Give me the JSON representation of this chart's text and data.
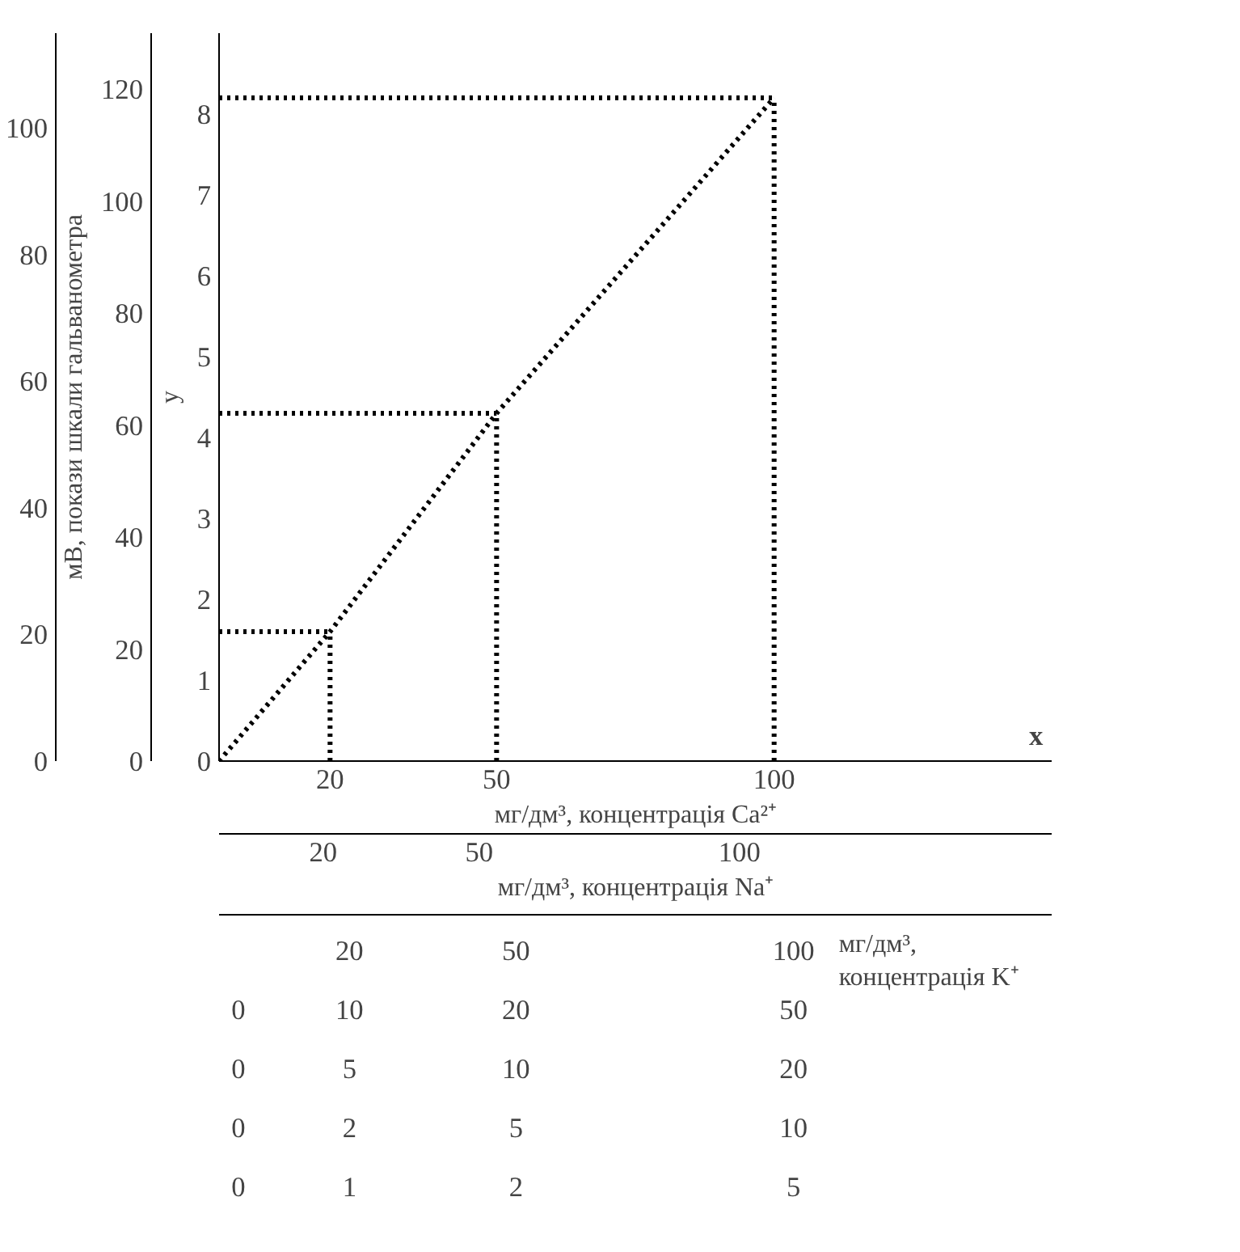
{
  "chart_data": {
    "type": "line",
    "line_style": "dotted",
    "marker": "none",
    "grid": false,
    "x": [
      0,
      20,
      50,
      100
    ],
    "series": [
      {
        "color": "#000000",
        "values": [
          0,
          1.6,
          4.3,
          8.2
        ]
      }
    ],
    "xlim": [
      0,
      150
    ],
    "xticks": [
      20,
      50,
      100
    ],
    "xlabel": "мг/дм³, концентрація Ca²⁺",
    "ylim": [
      0,
      9
    ],
    "yticks": [
      0,
      1,
      2,
      3,
      4,
      5,
      6,
      7,
      8
    ],
    "ylabel": "y",
    "y2lim": [
      0,
      130
    ],
    "y2ticks": [
      0,
      20,
      40,
      60,
      80,
      100,
      120
    ],
    "y2label": "мВ, покази шкали гальванометра",
    "y3lim": [
      0,
      115
    ],
    "y3ticks": [
      0,
      20,
      40,
      60,
      80,
      100
    ],
    "x2lim": [
      0,
      160
    ],
    "x2ticks": [
      20,
      50,
      100
    ],
    "x2label": "мг/дм³, концентрація Na⁺",
    "ref_lines": [
      {
        "axis": "x",
        "value": 20
      },
      {
        "axis": "x",
        "value": 50
      },
      {
        "axis": "x",
        "value": 100
      },
      {
        "axis": "y",
        "value": 1.6
      },
      {
        "axis": "y",
        "value": 4.3
      },
      {
        "axis": "y",
        "value": 8.2
      }
    ],
    "annotations": [
      "x",
      "20",
      "50",
      "100",
      "мг/дм³,\nконцентрація K⁺",
      "0",
      "10",
      "20",
      "50",
      "0",
      "5",
      "10",
      "20",
      "0",
      "2",
      "5",
      "10",
      "0",
      "1",
      "2",
      "5"
    ]
  }
}
